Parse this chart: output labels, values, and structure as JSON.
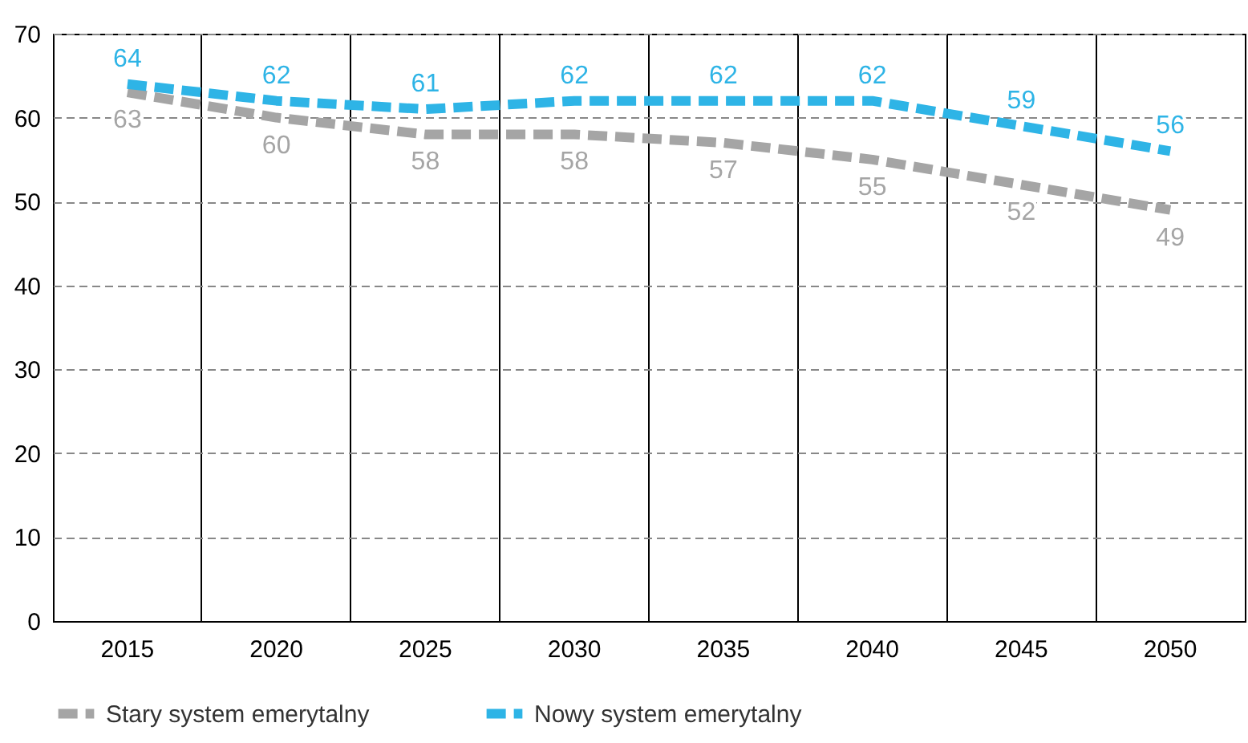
{
  "chart_data": {
    "type": "line",
    "categories": [
      "2015",
      "2020",
      "2025",
      "2030",
      "2035",
      "2040",
      "2045",
      "2050"
    ],
    "series": [
      {
        "name": "Stary system emerytalny",
        "color": "#a5a5a5",
        "values": [
          63,
          60,
          58,
          58,
          57,
          55,
          52,
          49
        ]
      },
      {
        "name": "Nowy system emerytalny",
        "color": "#2eb4e6",
        "values": [
          64,
          62,
          61,
          62,
          62,
          62,
          59,
          56
        ]
      }
    ],
    "ylim": [
      0,
      70
    ],
    "yticks": [
      0,
      10,
      20,
      30,
      40,
      50,
      60,
      70
    ],
    "grid": true,
    "legend": "bottom",
    "data_labels": true,
    "line_style": "dashed",
    "marker": "none"
  }
}
